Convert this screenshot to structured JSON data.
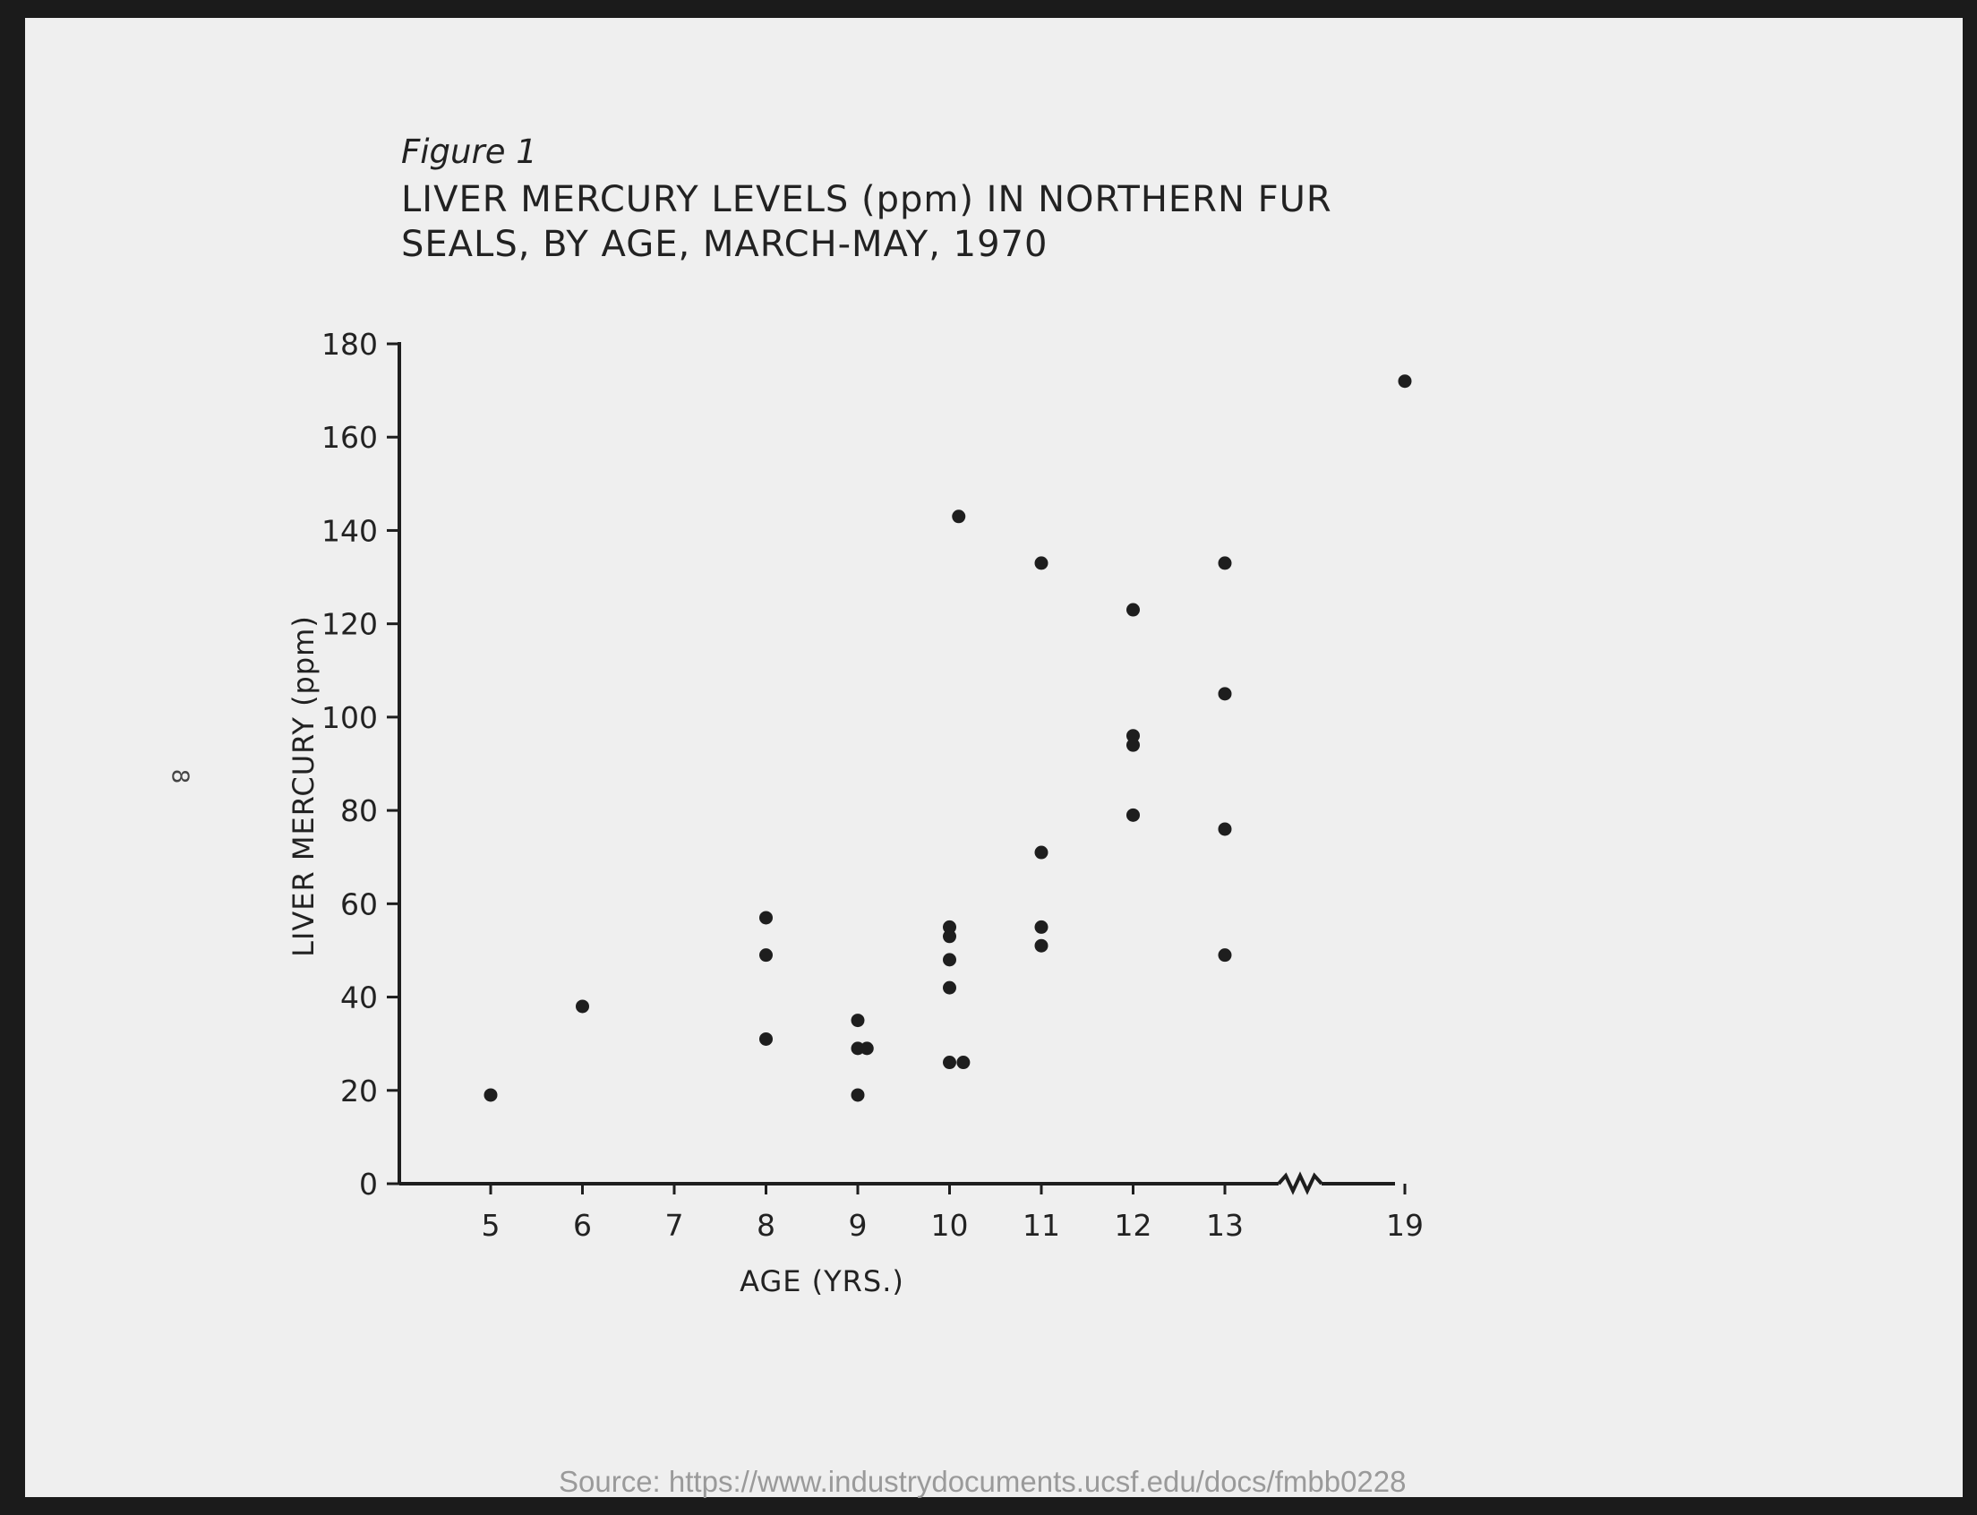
{
  "figure_label": "Figure 1",
  "page_number": "8",
  "source_text": "Source: https://www.industrydocuments.ucsf.edu/docs/fmbb0228",
  "chart_data": {
    "type": "scatter",
    "title_lines": [
      "LIVER MERCURY LEVELS (ppm) IN NORTHERN FUR",
      "SEALS, BY AGE, MARCH-MAY, 1970"
    ],
    "xlabel": "AGE (YRS.)",
    "ylabel": "LIVER MERCURY (ppm)",
    "x_ticks": [
      "5",
      "6",
      "7",
      "8",
      "9",
      "10",
      "11",
      "12",
      "13",
      "19"
    ],
    "y_ticks": [
      "0",
      "20",
      "40",
      "60",
      "80",
      "100",
      "120",
      "140",
      "160",
      "180"
    ],
    "ylim": [
      0,
      180
    ],
    "x_axis_break": "between 13 and 19",
    "grid": false,
    "points": [
      {
        "x": 5,
        "y": 19
      },
      {
        "x": 6,
        "y": 38
      },
      {
        "x": 8,
        "y": 57
      },
      {
        "x": 8,
        "y": 49
      },
      {
        "x": 8,
        "y": 31
      },
      {
        "x": 9,
        "y": 35
      },
      {
        "x": 9,
        "y": 29
      },
      {
        "x": 9.1,
        "y": 29
      },
      {
        "x": 9,
        "y": 19
      },
      {
        "x": 10,
        "y": 55
      },
      {
        "x": 10,
        "y": 53
      },
      {
        "x": 10,
        "y": 48
      },
      {
        "x": 10,
        "y": 42
      },
      {
        "x": 10,
        "y": 26
      },
      {
        "x": 10.15,
        "y": 26
      },
      {
        "x": 10.1,
        "y": 143
      },
      {
        "x": 11,
        "y": 133
      },
      {
        "x": 11,
        "y": 71
      },
      {
        "x": 11,
        "y": 55
      },
      {
        "x": 11,
        "y": 51
      },
      {
        "x": 12,
        "y": 123
      },
      {
        "x": 12,
        "y": 96
      },
      {
        "x": 12,
        "y": 94
      },
      {
        "x": 12,
        "y": 79
      },
      {
        "x": 13,
        "y": 133
      },
      {
        "x": 13,
        "y": 105
      },
      {
        "x": 13,
        "y": 76
      },
      {
        "x": 13,
        "y": 49
      },
      {
        "x": 19,
        "y": 172
      }
    ]
  }
}
